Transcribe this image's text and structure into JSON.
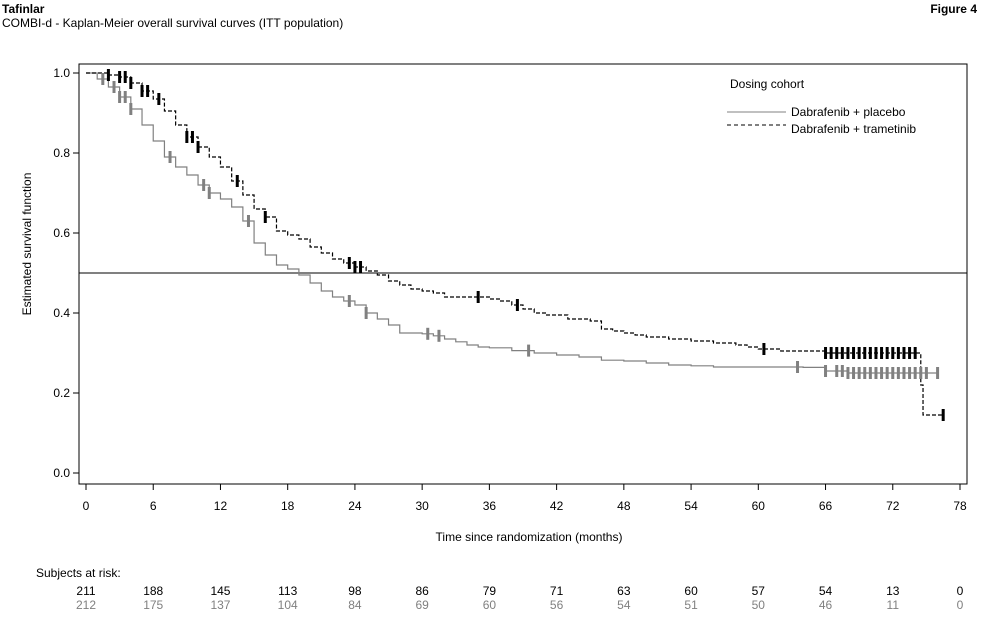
{
  "header": {
    "app_title": "Tafinlar",
    "figure_label": "Figure 4",
    "subtitle": "COMBI-d - Kaplan-Meier overall survival curves (ITT population)"
  },
  "chart_data": {
    "type": "line",
    "title": "COMBI-d - Kaplan-Meier overall survival curves (ITT population)",
    "xlabel": "Time since randomization (months)",
    "ylabel": "Estimated survival function",
    "xlim": [
      0,
      78
    ],
    "ylim": [
      0,
      1
    ],
    "x_ticks": [
      0,
      6,
      12,
      18,
      24,
      30,
      36,
      42,
      48,
      54,
      60,
      66,
      72,
      78
    ],
    "y_ticks": [
      "0.0",
      "0.2",
      "0.4",
      "0.6",
      "0.8",
      "1.0"
    ],
    "reference_line_y": 0.5,
    "grid": false,
    "legend": {
      "title": "Dosing cohort",
      "placement": "top-right",
      "entries": [
        "Dabrafenib + placebo",
        "Dabrafenib + trametinib"
      ]
    },
    "series": [
      {
        "name": "Dabrafenib + placebo",
        "color": "#808080",
        "dash": "solid",
        "points": [
          [
            0,
            1.0
          ],
          [
            1,
            0.985
          ],
          [
            2,
            0.965
          ],
          [
            3,
            0.94
          ],
          [
            4,
            0.91
          ],
          [
            5,
            0.87
          ],
          [
            6,
            0.83
          ],
          [
            7,
            0.79
          ],
          [
            8,
            0.765
          ],
          [
            9,
            0.745
          ],
          [
            10,
            0.72
          ],
          [
            11,
            0.7
          ],
          [
            12,
            0.685
          ],
          [
            13,
            0.665
          ],
          [
            14,
            0.63
          ],
          [
            15,
            0.575
          ],
          [
            16,
            0.545
          ],
          [
            17,
            0.52
          ],
          [
            18,
            0.51
          ],
          [
            19,
            0.495
          ],
          [
            20,
            0.475
          ],
          [
            21,
            0.455
          ],
          [
            22,
            0.44
          ],
          [
            23,
            0.43
          ],
          [
            24,
            0.42
          ],
          [
            25,
            0.4
          ],
          [
            26,
            0.385
          ],
          [
            27,
            0.37
          ],
          [
            28,
            0.35
          ],
          [
            29,
            0.35
          ],
          [
            30,
            0.348
          ],
          [
            31,
            0.343
          ],
          [
            32,
            0.335
          ],
          [
            33,
            0.328
          ],
          [
            34,
            0.32
          ],
          [
            35,
            0.315
          ],
          [
            36,
            0.313
          ],
          [
            38,
            0.306
          ],
          [
            40,
            0.3
          ],
          [
            42,
            0.295
          ],
          [
            44,
            0.29
          ],
          [
            46,
            0.282
          ],
          [
            48,
            0.28
          ],
          [
            50,
            0.275
          ],
          [
            52,
            0.27
          ],
          [
            54,
            0.268
          ],
          [
            56,
            0.265
          ],
          [
            58,
            0.265
          ],
          [
            60,
            0.265
          ],
          [
            62,
            0.265
          ],
          [
            64,
            0.264
          ],
          [
            66,
            0.255
          ],
          [
            68,
            0.25
          ],
          [
            70,
            0.25
          ],
          [
            72,
            0.25
          ],
          [
            74,
            0.25
          ],
          [
            76,
            0.25
          ]
        ],
        "censor_x": [
          1.5,
          2.5,
          3,
          3.5,
          4,
          7.5,
          10.5,
          11,
          14.5,
          23.5,
          25,
          30.5,
          31.5,
          39.5,
          63.5,
          66,
          67,
          67.5,
          68,
          68.5,
          69,
          69.5,
          70,
          70.5,
          71,
          71.5,
          72,
          72.5,
          73,
          73.5,
          74,
          74.5,
          75,
          76
        ]
      },
      {
        "name": "Dabrafenib + trametinib",
        "color": "#000000",
        "dash": "dashed",
        "points": [
          [
            0,
            1.0
          ],
          [
            2,
            0.995
          ],
          [
            3,
            0.99
          ],
          [
            4,
            0.975
          ],
          [
            5,
            0.955
          ],
          [
            6,
            0.935
          ],
          [
            7,
            0.905
          ],
          [
            8,
            0.87
          ],
          [
            9,
            0.84
          ],
          [
            10,
            0.815
          ],
          [
            11,
            0.79
          ],
          [
            12,
            0.765
          ],
          [
            13,
            0.73
          ],
          [
            14,
            0.695
          ],
          [
            15,
            0.66
          ],
          [
            16,
            0.64
          ],
          [
            17,
            0.605
          ],
          [
            18,
            0.595
          ],
          [
            19,
            0.585
          ],
          [
            20,
            0.565
          ],
          [
            21,
            0.55
          ],
          [
            22,
            0.535
          ],
          [
            23,
            0.525
          ],
          [
            24,
            0.515
          ],
          [
            25,
            0.505
          ],
          [
            26,
            0.495
          ],
          [
            27,
            0.48
          ],
          [
            28,
            0.47
          ],
          [
            29,
            0.46
          ],
          [
            30,
            0.455
          ],
          [
            31,
            0.45
          ],
          [
            32,
            0.44
          ],
          [
            34,
            0.44
          ],
          [
            36,
            0.435
          ],
          [
            37,
            0.43
          ],
          [
            38,
            0.42
          ],
          [
            39,
            0.41
          ],
          [
            40,
            0.4
          ],
          [
            41,
            0.395
          ],
          [
            43,
            0.385
          ],
          [
            45,
            0.38
          ],
          [
            46,
            0.36
          ],
          [
            47,
            0.355
          ],
          [
            48,
            0.35
          ],
          [
            49,
            0.345
          ],
          [
            50,
            0.34
          ],
          [
            52,
            0.335
          ],
          [
            54,
            0.33
          ],
          [
            56,
            0.325
          ],
          [
            58,
            0.32
          ],
          [
            59,
            0.315
          ],
          [
            60,
            0.31
          ],
          [
            62,
            0.305
          ],
          [
            64,
            0.305
          ],
          [
            66,
            0.3
          ],
          [
            68,
            0.3
          ],
          [
            70,
            0.3
          ],
          [
            72,
            0.3
          ],
          [
            74,
            0.3
          ],
          [
            74.5,
            0.22
          ],
          [
            74.7,
            0.145
          ],
          [
            76.5,
            0.145
          ]
        ],
        "censor_x": [
          2,
          3,
          3.5,
          4,
          5,
          5.5,
          6.5,
          9,
          9.5,
          10,
          13.5,
          16,
          23.5,
          24,
          24.5,
          35,
          38.5,
          60.5,
          66,
          66.5,
          67,
          67.5,
          68,
          68.5,
          69,
          69.5,
          70,
          70.5,
          71,
          71.5,
          72,
          72.5,
          73,
          73.5,
          74,
          76.5
        ]
      }
    ],
    "risk_table": {
      "title": "Subjects at risk:",
      "times": [
        0,
        6,
        12,
        18,
        24,
        30,
        36,
        42,
        48,
        54,
        60,
        66,
        72,
        78
      ],
      "rows": [
        {
          "color": "#000000",
          "values": [
            211,
            188,
            145,
            113,
            98,
            86,
            79,
            71,
            63,
            60,
            57,
            54,
            13,
            0
          ]
        },
        {
          "color": "#808080",
          "values": [
            212,
            175,
            137,
            104,
            84,
            69,
            60,
            56,
            54,
            51,
            50,
            46,
            11,
            0
          ]
        }
      ]
    }
  }
}
